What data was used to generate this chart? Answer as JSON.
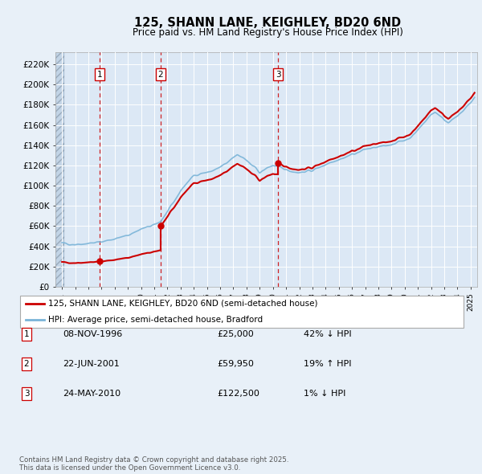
{
  "title": "125, SHANN LANE, KEIGHLEY, BD20 6ND",
  "subtitle": "Price paid vs. HM Land Registry's House Price Index (HPI)",
  "background_color": "#e8f0f8",
  "plot_bg_color": "#dce8f5",
  "ylabel_ticks": [
    "£0",
    "£20K",
    "£40K",
    "£60K",
    "£80K",
    "£100K",
    "£120K",
    "£140K",
    "£160K",
    "£180K",
    "£200K",
    "£220K"
  ],
  "ytick_values": [
    0,
    20000,
    40000,
    60000,
    80000,
    100000,
    120000,
    140000,
    160000,
    180000,
    200000,
    220000
  ],
  "ymax": 232000,
  "xmin": 1993.5,
  "xmax": 2025.5,
  "transactions": [
    {
      "label": "1",
      "date": 1996.86,
      "price": 25000
    },
    {
      "label": "2",
      "date": 2001.47,
      "price": 59950
    },
    {
      "label": "3",
      "date": 2010.39,
      "price": 122500
    }
  ],
  "transaction_info": [
    {
      "num": "1",
      "date": "08-NOV-1996",
      "price": "£25,000",
      "hpi": "42% ↓ HPI"
    },
    {
      "num": "2",
      "date": "22-JUN-2001",
      "price": "£59,950",
      "hpi": "19% ↑ HPI"
    },
    {
      "num": "3",
      "date": "24-MAY-2010",
      "price": "£122,500",
      "hpi": "1% ↓ HPI"
    }
  ],
  "legend_line1": "125, SHANN LANE, KEIGHLEY, BD20 6ND (semi-detached house)",
  "legend_line2": "HPI: Average price, semi-detached house, Bradford",
  "footer": "Contains HM Land Registry data © Crown copyright and database right 2025.\nThis data is licensed under the Open Government Licence v3.0.",
  "hpi_color": "#7ab4d8",
  "price_color": "#cc0000",
  "vline_color": "#cc0000",
  "box_color": "#cc0000",
  "grid_color": "#ffffff",
  "hatch_color": "#b8cce0"
}
